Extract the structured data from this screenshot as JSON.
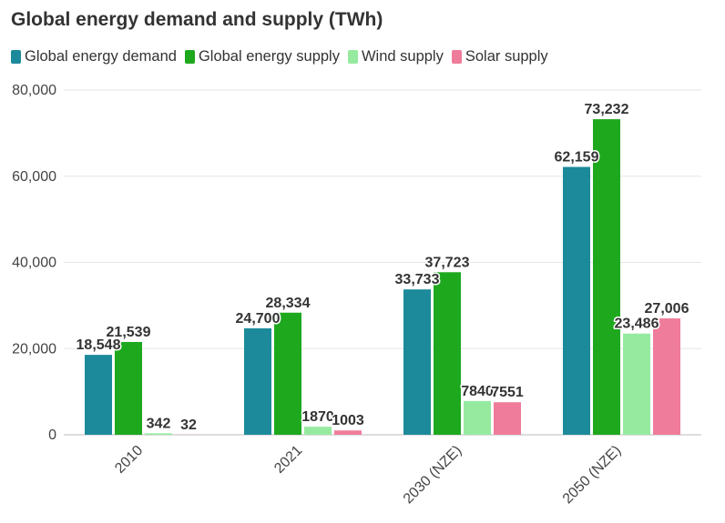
{
  "chart_data": {
    "type": "bar",
    "title": "Global energy demand and supply (TWh)",
    "categories": [
      "2010",
      "2021",
      "2030 (NZE)",
      "2050 (NZE)"
    ],
    "series": [
      {
        "name": "Global energy demand",
        "color": "#1c8a9a",
        "values": [
          18548,
          24700,
          33733,
          62159
        ],
        "labels": [
          "18,548",
          "24,700",
          "33,733",
          "62,159"
        ]
      },
      {
        "name": "Global energy supply",
        "color": "#1ea81e",
        "values": [
          21539,
          28334,
          37723,
          73232
        ],
        "labels": [
          "21,539",
          "28,334",
          "37,723",
          "73,232"
        ]
      },
      {
        "name": "Wind supply",
        "color": "#96eaa0",
        "values": [
          342,
          1870,
          7840,
          23486
        ],
        "labels": [
          "342",
          "1870",
          "7840",
          "23,486"
        ]
      },
      {
        "name": "Solar supply",
        "color": "#ef7c9a",
        "values": [
          32,
          1003,
          7551,
          27006
        ],
        "labels": [
          "32",
          "1003",
          "7551",
          "27,006"
        ]
      }
    ],
    "yticks": [
      0,
      20000,
      40000,
      60000,
      80000
    ],
    "ytick_labels": [
      "0",
      "20,000",
      "40,000",
      "60,000",
      "80,000"
    ],
    "ylim": [
      0,
      80000
    ],
    "xlabel": "",
    "ylabel": "",
    "legend_position": "top-left",
    "grid": true
  }
}
